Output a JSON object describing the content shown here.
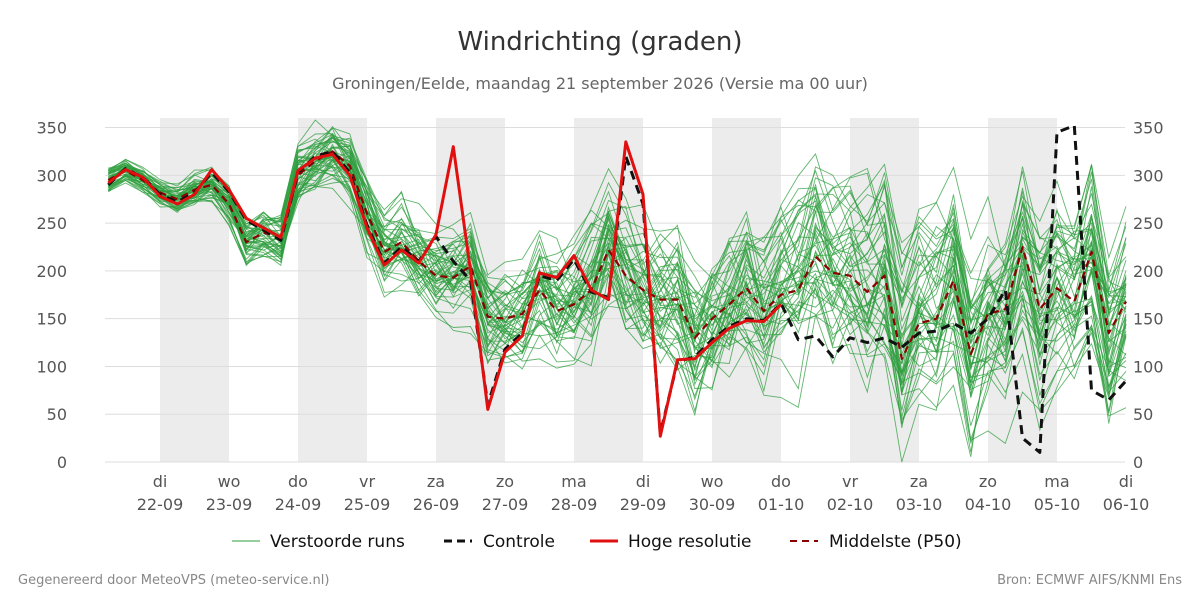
{
  "chart_data": {
    "type": "line",
    "title": "Windrichting (graden)",
    "subtitle": "Groningen/Eelde, maandag 21 september 2026 (Versie ma 00 uur)",
    "ylim": [
      0,
      360
    ],
    "yticks": [
      0,
      50,
      100,
      150,
      200,
      250,
      300,
      350
    ],
    "xlim_days": [
      -0.8,
      14.0
    ],
    "x_ticks": [
      {
        "day": "di",
        "date": "22-09"
      },
      {
        "day": "wo",
        "date": "23-09"
      },
      {
        "day": "do",
        "date": "24-09"
      },
      {
        "day": "vr",
        "date": "25-09"
      },
      {
        "day": "za",
        "date": "26-09"
      },
      {
        "day": "zo",
        "date": "27-09"
      },
      {
        "day": "ma",
        "date": "28-09"
      },
      {
        "day": "di",
        "date": "29-09"
      },
      {
        "day": "wo",
        "date": "30-09"
      },
      {
        "day": "do",
        "date": "01-10"
      },
      {
        "day": "vr",
        "date": "02-10"
      },
      {
        "day": "za",
        "date": "03-10"
      },
      {
        "day": "zo",
        "date": "04-10"
      },
      {
        "day": "ma",
        "date": "05-10"
      },
      {
        "day": "di",
        "date": "06-10"
      }
    ],
    "shaded_bands_days": [
      [
        0,
        1
      ],
      [
        2,
        3
      ],
      [
        4,
        5
      ],
      [
        6,
        7
      ],
      [
        8,
        9
      ],
      [
        10,
        11
      ],
      [
        12,
        13
      ]
    ],
    "x_step_days": 0.25,
    "legend": {
      "placement": "bottom",
      "perturbed": "Verstoorde runs",
      "control": "Controle",
      "hires": "Hoge resolutie",
      "median": "Middelste (P50)"
    },
    "colors": {
      "perturbed": "#2e9e3e",
      "control": "#111111",
      "hires": "#e01010",
      "median": "#8b0000",
      "band": "#ececec",
      "grid": "#dddddd"
    },
    "series": [
      {
        "key": "hires",
        "x_start": -0.75,
        "values": [
          292,
          306,
          298,
          278,
          270,
          280,
          306,
          285,
          255,
          245,
          235,
          305,
          318,
          322,
          300,
          245,
          206,
          222,
          208,
          238,
          330,
          200,
          55,
          115,
          132,
          198,
          193,
          216,
          180,
          170,
          335,
          280,
          27,
          107,
          108,
          125,
          140,
          148,
          147,
          165
        ]
      },
      {
        "key": "control",
        "x_start": -0.75,
        "values": [
          290,
          307,
          298,
          280,
          272,
          282,
          303,
          283,
          253,
          243,
          232,
          303,
          320,
          325,
          303,
          248,
          208,
          225,
          210,
          236,
          210,
          190,
          60,
          118,
          135,
          195,
          190,
          212,
          178,
          172,
          320,
          270,
          30,
          105,
          110,
          128,
          142,
          150,
          148,
          166,
          128,
          132,
          110,
          130,
          125,
          130,
          120,
          135,
          137,
          145,
          135,
          150,
          180,
          25,
          10,
          345,
          352,
          75,
          65,
          85
        ]
      },
      {
        "key": "median",
        "x_start": -0.75,
        "values": [
          295,
          305,
          295,
          282,
          275,
          285,
          290,
          270,
          230,
          240,
          235,
          300,
          315,
          325,
          310,
          260,
          220,
          230,
          210,
          195,
          193,
          205,
          152,
          150,
          155,
          180,
          158,
          165,
          180,
          222,
          195,
          180,
          170,
          170,
          130,
          150,
          165,
          182,
          158,
          175,
          180,
          215,
          198,
          195,
          178,
          195,
          108,
          145,
          150,
          190,
          113,
          155,
          160,
          225,
          160,
          182,
          168,
          220,
          135,
          168
        ]
      }
    ],
    "footer_left": "Gegenereerd door MeteoVPS (meteo-service.nl)",
    "footer_right": "Bron: ECMWF AIFS/KNMI Ens"
  }
}
